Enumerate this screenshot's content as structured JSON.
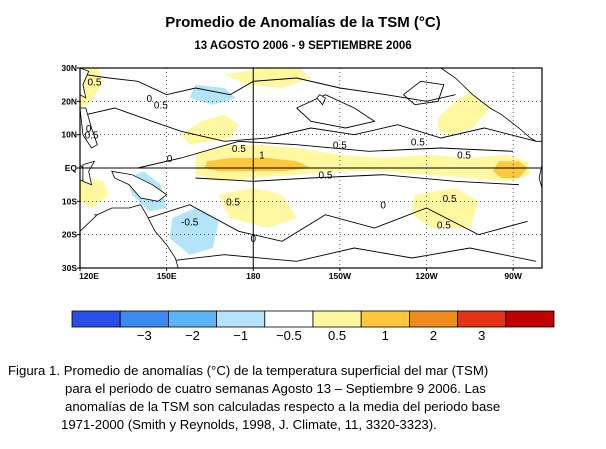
{
  "chart_data": {
    "type": "heatmap",
    "title": "Promedio de Anomalías de la TSM (°C)",
    "subtitle": "13 AGOSTO 2006  -  9 SEPTIEMBRE 2006",
    "x_ticks": [
      "120E",
      "150E",
      "180",
      "150W",
      "120W",
      "90W"
    ],
    "y_ticks": [
      "30N",
      "20N",
      "10N",
      "EQ",
      "10S",
      "20S",
      "30S"
    ],
    "lon_range": [
      120,
      280
    ],
    "lat_range": [
      -30,
      30
    ],
    "contour_labels": [
      {
        "text": "0.5",
        "lon": 125,
        "lat": 26
      },
      {
        "text": "0",
        "lon": 144,
        "lat": 21
      },
      {
        "text": "0.5",
        "lon": 148,
        "lat": 19
      },
      {
        "text": "0",
        "lon": 123,
        "lat": 12
      },
      {
        "text": "0.5",
        "lon": 124,
        "lat": 10
      },
      {
        "text": "0",
        "lon": 151,
        "lat": 3
      },
      {
        "text": "0.5",
        "lon": 175,
        "lat": 6
      },
      {
        "text": "1",
        "lon": 183,
        "lat": 4
      },
      {
        "text": "0.5",
        "lon": 210,
        "lat": 7
      },
      {
        "text": "0.5",
        "lon": 237,
        "lat": 8
      },
      {
        "text": "0.5",
        "lon": 253,
        "lat": 4
      },
      {
        "text": "0.5",
        "lon": 205,
        "lat": -2
      },
      {
        "text": "0.5",
        "lon": 173,
        "lat": -10
      },
      {
        "text": "-0.5",
        "lon": 158,
        "lat": -16
      },
      {
        "text": "0.5",
        "lon": 248,
        "lat": -9
      },
      {
        "text": "0.5",
        "lon": 246,
        "lat": -17
      },
      {
        "text": "0",
        "lon": 225,
        "lat": -11
      },
      {
        "text": "0",
        "lon": 180,
        "lat": -21
      }
    ],
    "color_scale": {
      "colors": [
        "#2850e8",
        "#3c8cf0",
        "#5ab4f5",
        "#b4e4fa",
        "#ffffff",
        "#fff8a0",
        "#ffc83c",
        "#f08c1e",
        "#e63214",
        "#c30000"
      ],
      "tick_labels": [
        "−3",
        "−2",
        "−1",
        "−0.5",
        "0.5",
        "1",
        "2",
        "3"
      ]
    }
  },
  "caption": {
    "line1": "Figura 1. Promedio de anomalías (°C)   de la temperatura  superficial  del mar  (TSM)",
    "line2": "para  el  periodo de cuatro semanas Agosto 13  –  Septiembre 9  2006.   Las",
    "line3": "anomalías de la TSM son calculadas respecto a  la media del periodo  base",
    "line4": "1971-2000 (Smith y Reynolds, 1998, J. Climate, 11, 3320-3323)."
  }
}
